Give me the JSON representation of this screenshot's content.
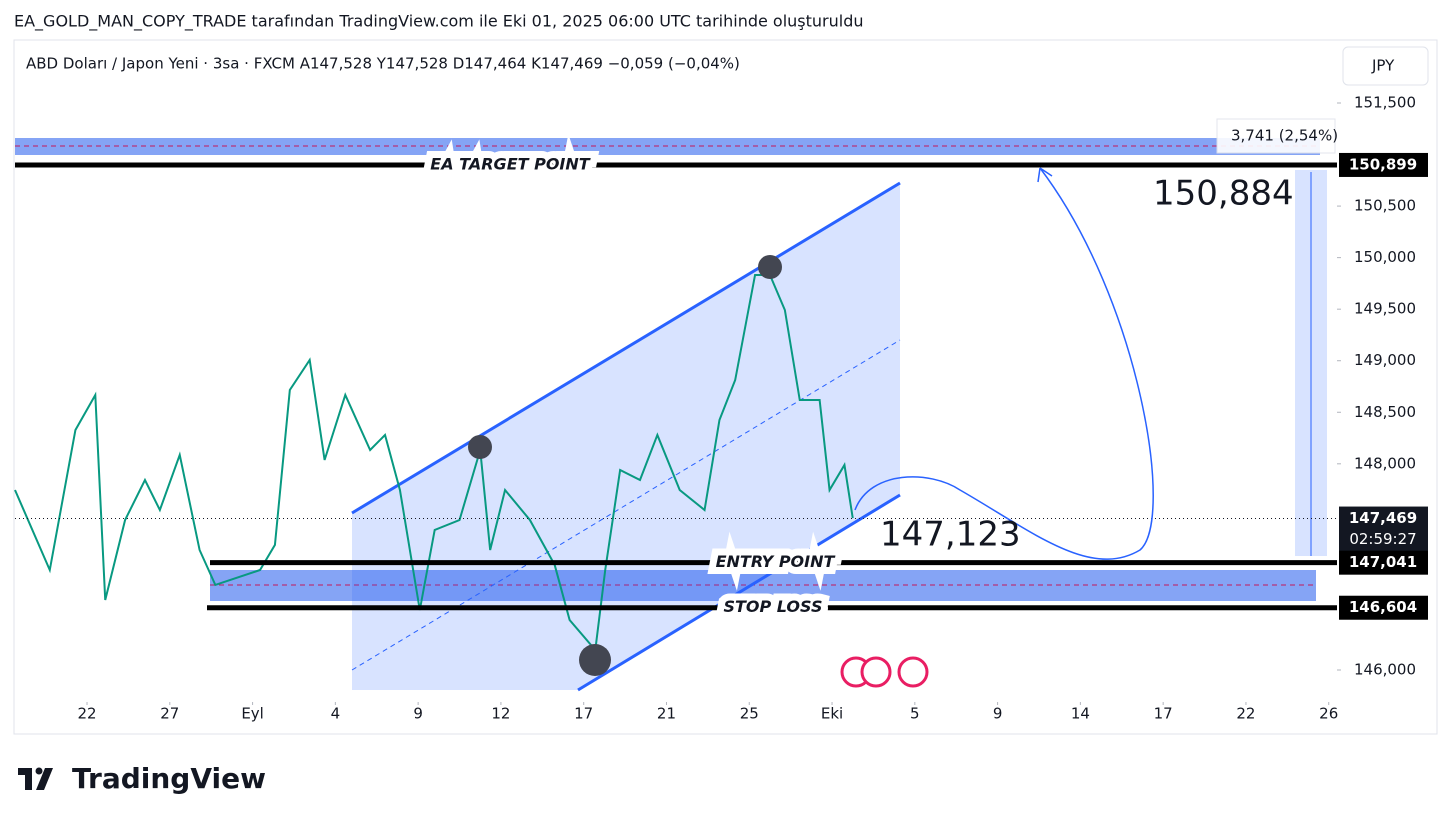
{
  "header": {
    "title": "EA_GOLD_MAN_COPY_TRADE tarafından TradingView.com ile Eki 01, 2025 06:00 UTC tarihinde oluşturuldu"
  },
  "footer": {
    "logo": "TradingView"
  },
  "chart_data": {
    "type": "line",
    "symbol_info": "ABD Doları / Japon Yeni · 3sa · FXCM  A147,528  Y147,528  D147,464  K147,469  −0,059 (−0,04%)",
    "currency": "JPY",
    "color": "#089981",
    "xlim": [
      -0.87,
      15.1
    ],
    "xticks": [
      {
        "value": 0,
        "label": "22"
      },
      {
        "value": 1,
        "label": "27"
      },
      {
        "value": 2,
        "label": "Eyl"
      },
      {
        "value": 3,
        "label": "4"
      },
      {
        "value": 4,
        "label": "9"
      },
      {
        "value": 5,
        "label": "12"
      },
      {
        "value": 6,
        "label": "17"
      },
      {
        "value": 7,
        "label": "21"
      },
      {
        "value": 8,
        "label": "25"
      },
      {
        "value": 9,
        "label": "Eki"
      },
      {
        "value": 10,
        "label": "5"
      },
      {
        "value": 11,
        "label": "9"
      },
      {
        "value": 12,
        "label": "14"
      },
      {
        "value": 13,
        "label": "17"
      },
      {
        "value": 14,
        "label": "22"
      },
      {
        "value": 15,
        "label": "26"
      }
    ],
    "ylim": [
      145709,
      152111
    ],
    "yticks": [
      {
        "value": 146000,
        "label": "146,000"
      },
      {
        "value": 148000,
        "label": "148,000"
      },
      {
        "value": 148500,
        "label": "148,500"
      },
      {
        "value": 149000,
        "label": "149,000"
      },
      {
        "value": 149500,
        "label": "149,500"
      },
      {
        "value": 150000,
        "label": "150,000"
      },
      {
        "value": 150500,
        "label": "150,500"
      },
      {
        "value": 151500,
        "label": "151,500"
      }
    ],
    "x": [
      -0.87,
      -0.45,
      -0.14,
      0.1,
      0.22,
      0.46,
      0.7,
      0.88,
      1.12,
      1.36,
      1.55,
      2.09,
      2.27,
      2.45,
      2.69,
      2.87,
      3.12,
      3.42,
      3.6,
      3.78,
      4.02,
      4.2,
      4.5,
      4.75,
      4.87,
      5.05,
      5.35,
      5.65,
      5.83,
      6.14,
      6.26,
      6.44,
      6.68,
      6.89,
      7.16,
      7.46,
      7.64,
      7.83,
      8.07,
      8.25,
      8.43,
      8.61,
      8.85,
      8.97,
      9.15,
      9.25
    ],
    "values": [
      147746,
      146970,
      148328,
      148668,
      146679,
      147455,
      147843,
      147552,
      148086,
      147164,
      146825,
      146970,
      147213,
      148716,
      149007,
      148037,
      148668,
      148134,
      148280,
      147746,
      146582,
      147358,
      147455,
      148134,
      147164,
      147746,
      147455,
      147018,
      146485,
      146194,
      146970,
      147940,
      147843,
      148280,
      147746,
      147552,
      148425,
      148813,
      149832,
      149832,
      149492,
      148619,
      148619,
      147746,
      147989,
      147474
    ],
    "levels": [
      {
        "label": "EA TARGET POINT",
        "value": 150899,
        "value_label": "150,899"
      },
      {
        "label": "ENTRY POINT",
        "value": 147041,
        "value_label": "147,041"
      },
      {
        "label": "STOP LOSS",
        "value": 146604,
        "value_label": "146,604"
      }
    ],
    "last_price": {
      "value": 147469,
      "label": "147,469"
    },
    "countdown": "02:59:27",
    "annotations": [
      "150,884",
      "147,123"
    ],
    "measure": "3,741 (2,54%)"
  }
}
